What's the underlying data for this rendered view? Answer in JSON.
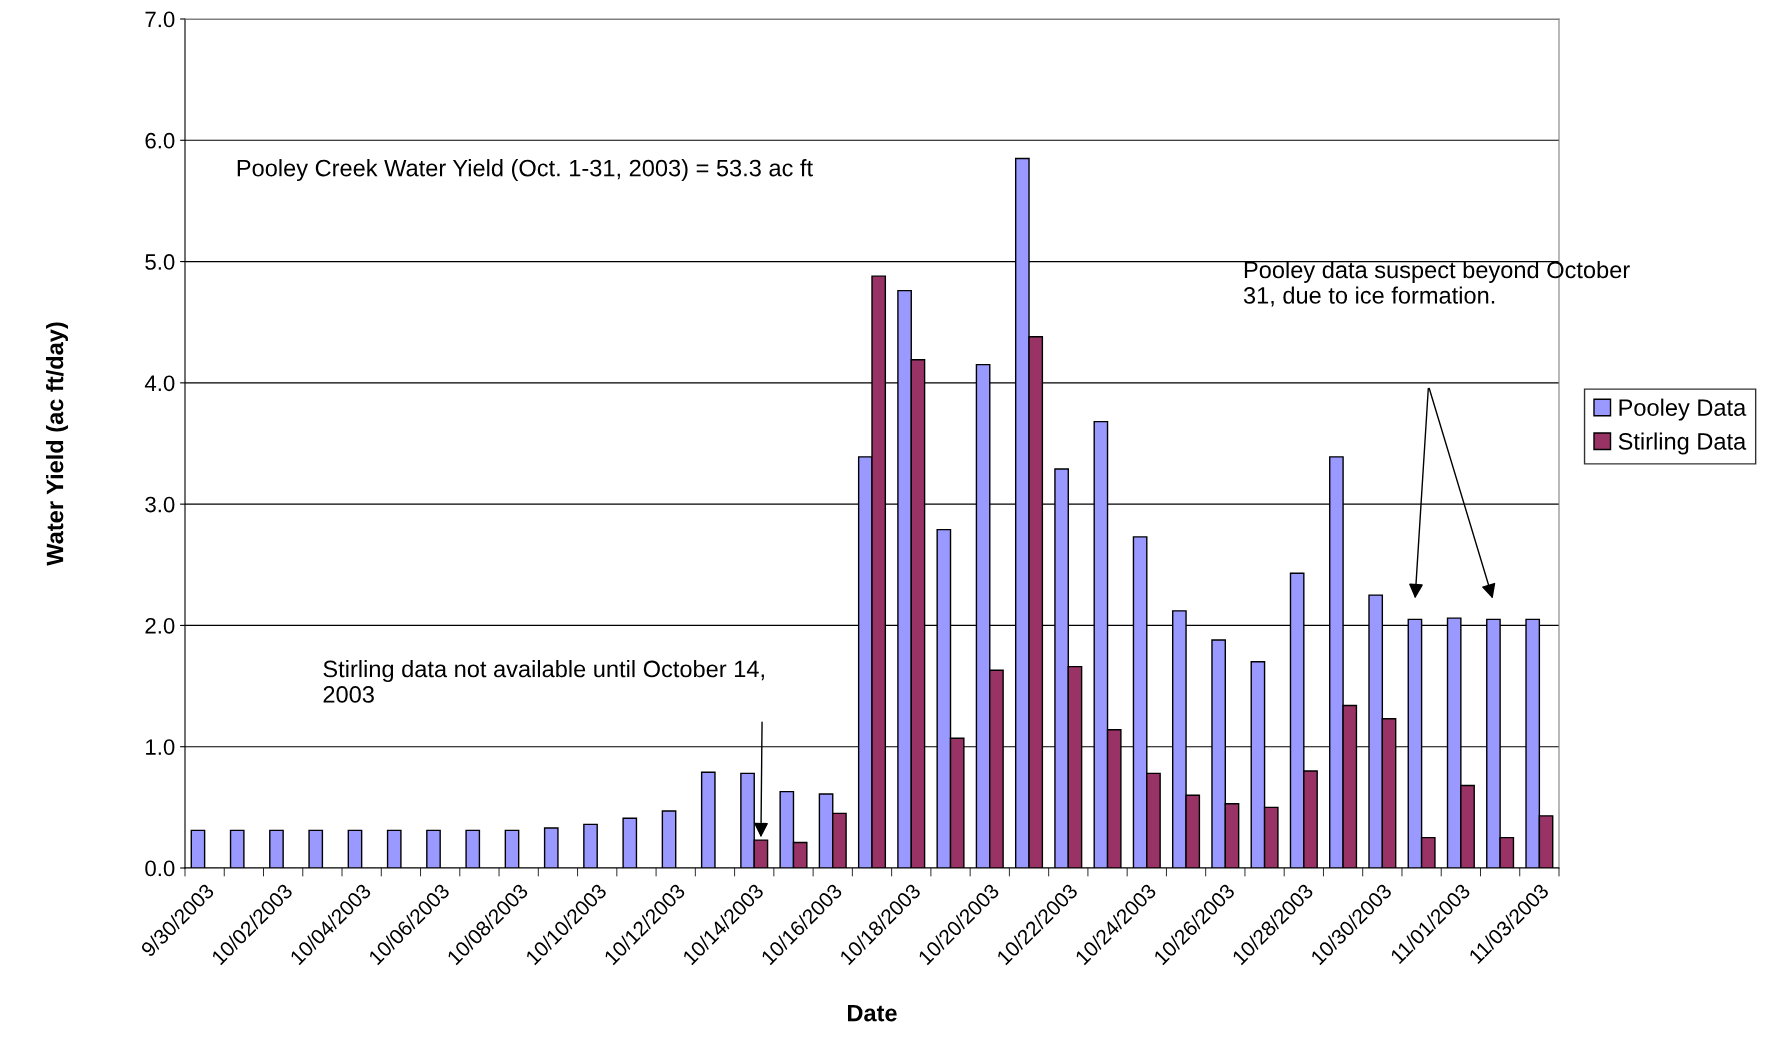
{
  "chart_data": {
    "type": "bar",
    "xlabel": "Date",
    "ylabel": "Water Yield (ac ft/day)",
    "categories": [
      "9/30/2003",
      null,
      "10/02/2003",
      null,
      "10/04/2003",
      null,
      "10/06/2003",
      null,
      "10/08/2003",
      null,
      "10/10/2003",
      null,
      "10/12/2003",
      null,
      "10/14/2003",
      null,
      "10/16/2003",
      null,
      "10/18/2003",
      null,
      "10/20/2003",
      null,
      "10/22/2003",
      null,
      "10/24/2003",
      null,
      "10/26/2003",
      null,
      "10/28/2003",
      null,
      "10/30/2003",
      null,
      "11/01/2003",
      null,
      "11/03/2003"
    ],
    "series": [
      {
        "name": "Pooley Data",
        "color": "#9999ff",
        "values": [
          0.31,
          0.31,
          0.31,
          0.31,
          0.31,
          0.31,
          0.31,
          0.31,
          0.31,
          0.33,
          0.36,
          0.41,
          0.47,
          0.79,
          0.78,
          0.63,
          0.61,
          3.39,
          4.76,
          2.79,
          4.15,
          5.85,
          3.29,
          3.68,
          2.73,
          2.12,
          1.88,
          1.7,
          2.43,
          3.39,
          2.25,
          2.05,
          2.06,
          2.05,
          2.05
        ]
      },
      {
        "name": "Stirling Data",
        "color": "#993366",
        "values": [
          null,
          null,
          null,
          null,
          null,
          null,
          null,
          null,
          null,
          null,
          null,
          null,
          null,
          null,
          0.23,
          0.21,
          0.45,
          4.88,
          4.19,
          1.07,
          1.63,
          4.38,
          1.66,
          1.14,
          0.78,
          0.6,
          0.53,
          0.5,
          0.8,
          1.34,
          1.23,
          0.25,
          0.68,
          0.25,
          0.43
        ]
      }
    ],
    "ylim": [
      0,
      7
    ],
    "yticks": [
      {
        "value": 0,
        "label": "0.0"
      },
      {
        "value": 1,
        "label": "1.0"
      },
      {
        "value": 2,
        "label": "2.0"
      },
      {
        "value": 3,
        "label": "3.0"
      },
      {
        "value": 4,
        "label": "4.0"
      },
      {
        "value": 5,
        "label": "5.0"
      },
      {
        "value": 6,
        "label": "6.0"
      },
      {
        "value": 7,
        "label": "7.0"
      }
    ],
    "grid": "y",
    "legend": "right",
    "annotations": [
      "Pooley Creek Water Yield (Oct. 1-31, 2003) = 53.3 ac ft",
      "Stirling data not available until October 14, 2003",
      "Pooley data suspect beyond October 31, due to ice formation."
    ]
  }
}
